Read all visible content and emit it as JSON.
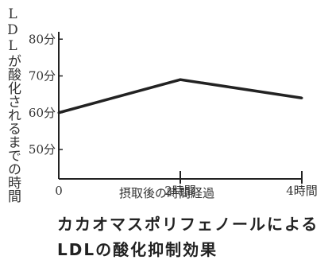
{
  "chart_data": {
    "type": "line",
    "ylabel": "LDLが酸化されるまでの時間",
    "xlabel": "摂取後の時間経過",
    "x_categories": [
      "0",
      "2時間",
      "4時間"
    ],
    "y_ticks": [
      "50分",
      "60分",
      "70分",
      "80分"
    ],
    "ylim": [
      42,
      82
    ],
    "series": [
      {
        "x": [
          0,
          2,
          4
        ],
        "values": [
          60,
          69,
          64
        ]
      }
    ],
    "grid": false
  },
  "caption": {
    "line1": "カカオマスポリフェノールによる",
    "line2": "LDLの酸化抑制効果"
  },
  "colors": {
    "line": "#222222",
    "axis": "#222222"
  }
}
